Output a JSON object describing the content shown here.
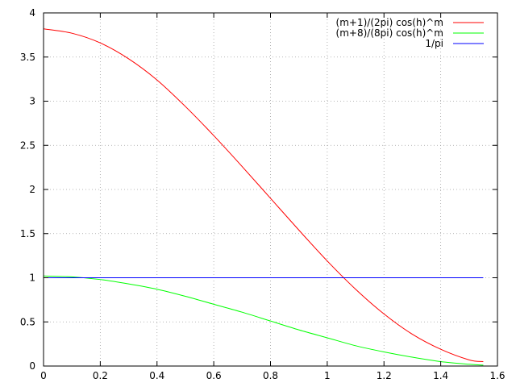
{
  "chart_data": {
    "type": "line",
    "title": "",
    "xlabel": "",
    "ylabel": "",
    "xlim": [
      0,
      1.6
    ],
    "ylim": [
      0,
      4
    ],
    "xticks": [
      "0",
      "0.2",
      "0.4",
      "0.6",
      "0.8",
      "1",
      "1.2",
      "1.4",
      "1.6"
    ],
    "yticks": [
      "0",
      "0.5",
      "1",
      "1.5",
      "2",
      "2.5",
      "3",
      "3.5",
      "4"
    ],
    "grid": true,
    "legend_position": "top-right",
    "series": [
      {
        "name": "(m+1)/(2pi) cos(h)^m",
        "color": "#ff0000",
        "x": [
          0,
          0.1,
          0.2,
          0.3,
          0.4,
          0.5,
          0.6,
          0.7,
          0.8,
          0.9,
          1.0,
          1.1,
          1.2,
          1.3,
          1.4,
          1.5,
          1.55
        ],
        "y": [
          3.82,
          3.77,
          3.66,
          3.48,
          3.24,
          2.94,
          2.61,
          2.26,
          1.9,
          1.54,
          1.19,
          0.87,
          0.59,
          0.36,
          0.19,
          0.07,
          0.05
        ]
      },
      {
        "name": "(m+8)/(8pi) cos(h)^m",
        "color": "#00ff00",
        "x": [
          0,
          0.1,
          0.2,
          0.3,
          0.4,
          0.5,
          0.6,
          0.7,
          0.8,
          0.9,
          1.0,
          1.1,
          1.2,
          1.3,
          1.4,
          1.5,
          1.55
        ],
        "y": [
          1.02,
          1.01,
          0.98,
          0.93,
          0.87,
          0.79,
          0.7,
          0.61,
          0.51,
          0.41,
          0.32,
          0.23,
          0.16,
          0.1,
          0.05,
          0.02,
          0.01
        ]
      },
      {
        "name": "1/pi",
        "color": "#0000ff",
        "x": [
          0,
          1.55
        ],
        "y": [
          1.0,
          1.0
        ]
      }
    ]
  }
}
